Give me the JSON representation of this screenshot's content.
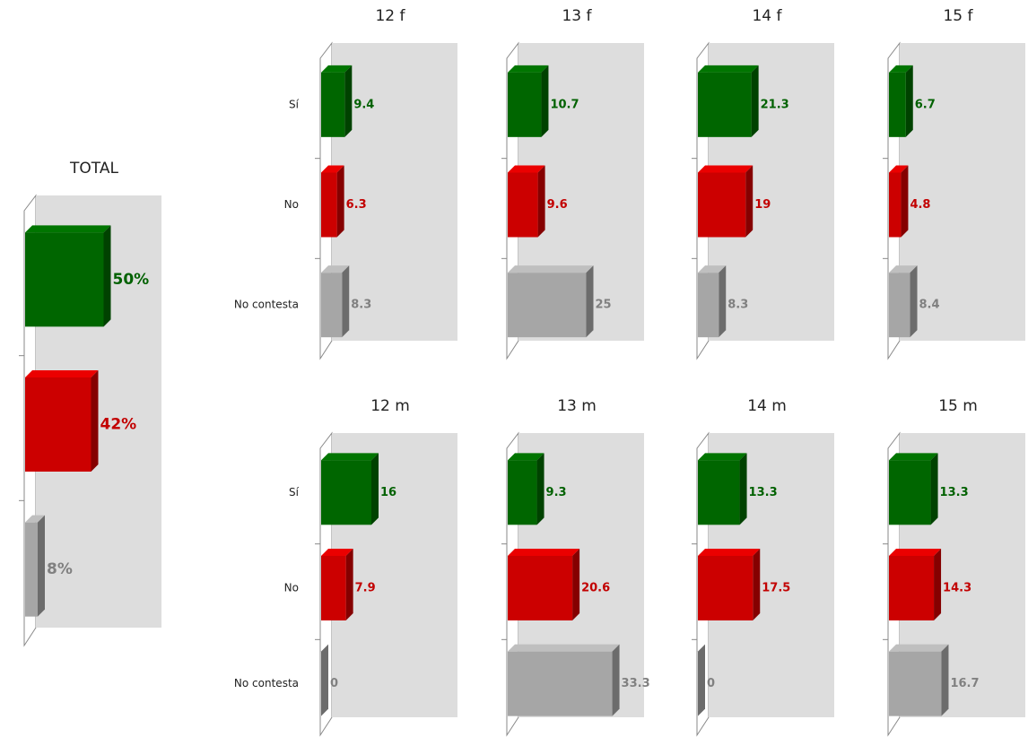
{
  "chart_data": [
    {
      "type": "bar",
      "title": "TOTAL",
      "values": [
        50,
        42,
        8
      ],
      "value_labels": [
        "50%",
        "42%",
        "8%"
      ],
      "colors": [
        "#006600",
        "#cc0000",
        "#a6a6a6"
      ],
      "xlim": [
        0,
        80
      ]
    },
    {
      "type": "bar",
      "title": "12 f",
      "categories": [
        "Sí",
        "No",
        "No contesta"
      ],
      "values": [
        9.4,
        6.3,
        8.3
      ],
      "colors": [
        "#006600",
        "#cc0000",
        "#a6a6a6"
      ],
      "xlim": [
        0,
        50
      ]
    },
    {
      "type": "bar",
      "title": "13 f",
      "values": [
        10.7,
        9.6,
        25
      ],
      "colors": [
        "#006600",
        "#cc0000",
        "#a6a6a6"
      ],
      "xlim": [
        0,
        40
      ]
    },
    {
      "type": "bar",
      "title": "14 f",
      "values": [
        21.3,
        19,
        8.3
      ],
      "colors": [
        "#006600",
        "#cc0000",
        "#a6a6a6"
      ],
      "xlim": [
        0,
        50
      ]
    },
    {
      "type": "bar",
      "title": "15 f",
      "values": [
        6.7,
        4.8,
        8.4
      ],
      "colors": [
        "#006600",
        "#cc0000",
        "#a6a6a6"
      ],
      "xlim": [
        0,
        50
      ]
    },
    {
      "type": "bar",
      "title": "12 m",
      "categories": [
        "Sí",
        "No",
        "No contesta"
      ],
      "values": [
        16,
        7.9,
        0
      ],
      "colors": [
        "#006600",
        "#cc0000",
        "#a6a6a6"
      ],
      "xlim": [
        0,
        40
      ]
    },
    {
      "type": "bar",
      "title": "13 m",
      "values": [
        9.3,
        20.6,
        33.3
      ],
      "colors": [
        "#006600",
        "#cc0000",
        "#a6a6a6"
      ],
      "xlim": [
        0,
        40
      ]
    },
    {
      "type": "bar",
      "title": "14 m",
      "values": [
        13.3,
        17.5,
        0
      ],
      "colors": [
        "#006600",
        "#cc0000",
        "#a6a6a6"
      ],
      "xlim": [
        0,
        40
      ]
    },
    {
      "type": "bar",
      "title": "15 m",
      "values": [
        13.3,
        14.3,
        16.7
      ],
      "colors": [
        "#006600",
        "#cc0000",
        "#a6a6a6"
      ],
      "xlim": [
        0,
        40
      ]
    }
  ]
}
